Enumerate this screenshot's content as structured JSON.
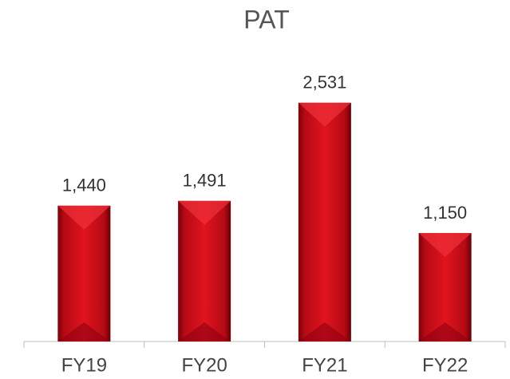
{
  "chart_data": {
    "type": "bar",
    "title": "PAT",
    "categories": [
      "FY19",
      "FY20",
      "FY21",
      "FY22"
    ],
    "values": [
      1440,
      1491,
      2531,
      1150
    ],
    "value_labels": [
      "1,440",
      "1,491",
      "2,531",
      "1,150"
    ],
    "color": "#d0101a",
    "ylim": [
      0,
      2800
    ]
  }
}
